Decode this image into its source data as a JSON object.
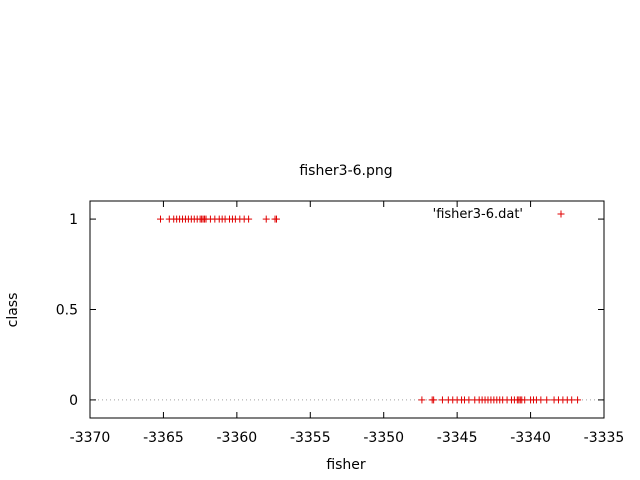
{
  "chart_data": {
    "type": "scatter",
    "title": "fisher3-6.png",
    "xlabel": "fisher",
    "ylabel": "class",
    "xlim": [
      -3370,
      -3335
    ],
    "ylim": [
      -0.1,
      1.1
    ],
    "xticks": [
      -3370,
      -3365,
      -3360,
      -3355,
      -3350,
      -3345,
      -3340,
      -3335
    ],
    "xtick_labels": [
      "-3370",
      "-3365",
      "-3360",
      "-3355",
      "-3350",
      "-3345",
      "-3340",
      "-3335"
    ],
    "yticks": [
      0,
      0.5,
      1
    ],
    "ytick_labels": [
      "0",
      "0.5",
      "1"
    ],
    "zero_line": true,
    "grid": false,
    "legend_position": "top-right",
    "marker": "plus",
    "series": [
      {
        "name": "'fisher3-6.dat'",
        "color": "#e00000",
        "points": [
          {
            "x": -3365.2,
            "y": 1
          },
          {
            "x": -3364.6,
            "y": 1
          },
          {
            "x": -3364.3,
            "y": 1
          },
          {
            "x": -3364.1,
            "y": 1
          },
          {
            "x": -3363.9,
            "y": 1
          },
          {
            "x": -3363.7,
            "y": 1
          },
          {
            "x": -3363.5,
            "y": 1
          },
          {
            "x": -3363.3,
            "y": 1
          },
          {
            "x": -3363.1,
            "y": 1
          },
          {
            "x": -3362.9,
            "y": 1
          },
          {
            "x": -3362.7,
            "y": 1
          },
          {
            "x": -3362.5,
            "y": 1
          },
          {
            "x": -3362.4,
            "y": 1
          },
          {
            "x": -3362.3,
            "y": 1
          },
          {
            "x": -3362.2,
            "y": 1
          },
          {
            "x": -3362.1,
            "y": 1
          },
          {
            "x": -3361.8,
            "y": 1
          },
          {
            "x": -3361.5,
            "y": 1
          },
          {
            "x": -3361.2,
            "y": 1
          },
          {
            "x": -3361.0,
            "y": 1
          },
          {
            "x": -3360.8,
            "y": 1
          },
          {
            "x": -3360.5,
            "y": 1
          },
          {
            "x": -3360.3,
            "y": 1
          },
          {
            "x": -3360.1,
            "y": 1
          },
          {
            "x": -3359.8,
            "y": 1
          },
          {
            "x": -3359.5,
            "y": 1
          },
          {
            "x": -3359.2,
            "y": 1
          },
          {
            "x": -3358.0,
            "y": 1
          },
          {
            "x": -3357.4,
            "y": 1
          },
          {
            "x": -3357.3,
            "y": 1
          },
          {
            "x": -3347.4,
            "y": 0
          },
          {
            "x": -3346.7,
            "y": 0
          },
          {
            "x": -3346.6,
            "y": 0
          },
          {
            "x": -3346.0,
            "y": 0
          },
          {
            "x": -3345.6,
            "y": 0
          },
          {
            "x": -3345.3,
            "y": 0
          },
          {
            "x": -3345.0,
            "y": 0
          },
          {
            "x": -3344.7,
            "y": 0
          },
          {
            "x": -3344.5,
            "y": 0
          },
          {
            "x": -3344.2,
            "y": 0
          },
          {
            "x": -3343.8,
            "y": 0
          },
          {
            "x": -3343.5,
            "y": 0
          },
          {
            "x": -3343.3,
            "y": 0
          },
          {
            "x": -3343.1,
            "y": 0
          },
          {
            "x": -3342.9,
            "y": 0
          },
          {
            "x": -3342.7,
            "y": 0
          },
          {
            "x": -3342.5,
            "y": 0
          },
          {
            "x": -3342.3,
            "y": 0
          },
          {
            "x": -3342.1,
            "y": 0
          },
          {
            "x": -3341.9,
            "y": 0
          },
          {
            "x": -3341.6,
            "y": 0
          },
          {
            "x": -3341.3,
            "y": 0
          },
          {
            "x": -3341.1,
            "y": 0
          },
          {
            "x": -3340.9,
            "y": 0
          },
          {
            "x": -3340.8,
            "y": 0
          },
          {
            "x": -3340.7,
            "y": 0
          },
          {
            "x": -3340.6,
            "y": 0
          },
          {
            "x": -3340.4,
            "y": 0
          },
          {
            "x": -3340.0,
            "y": 0
          },
          {
            "x": -3339.8,
            "y": 0
          },
          {
            "x": -3339.6,
            "y": 0
          },
          {
            "x": -3339.3,
            "y": 0
          },
          {
            "x": -3338.9,
            "y": 0
          },
          {
            "x": -3338.4,
            "y": 0
          },
          {
            "x": -3338.1,
            "y": 0
          },
          {
            "x": -3337.8,
            "y": 0
          },
          {
            "x": -3337.5,
            "y": 0
          },
          {
            "x": -3337.2,
            "y": 0
          },
          {
            "x": -3336.8,
            "y": 0
          }
        ]
      }
    ]
  }
}
